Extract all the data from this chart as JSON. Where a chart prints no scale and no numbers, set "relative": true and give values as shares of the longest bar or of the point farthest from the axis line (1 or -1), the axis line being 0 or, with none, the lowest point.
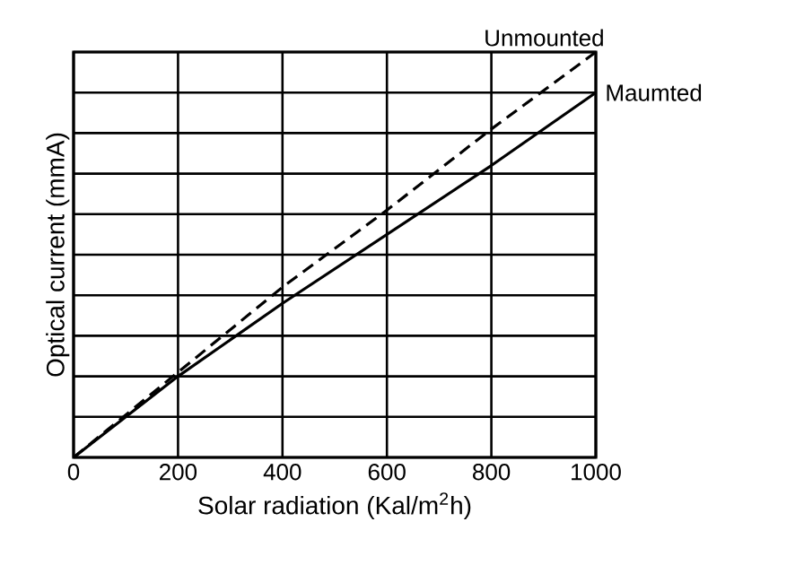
{
  "chart_data": {
    "type": "line",
    "relative": true,
    "xlabel": "Solar radiation (Kal/m$^{2}$h)",
    "ylabel": "Optical current (mmA)",
    "x": [
      0,
      200,
      400,
      600,
      800,
      1000
    ],
    "xlim": [
      0,
      1000
    ],
    "xticks": [
      0,
      200,
      400,
      600,
      800,
      1000
    ],
    "grid": true,
    "series": [
      {
        "name": "Unmounted",
        "color": "#000000",
        "line_style": "dashed",
        "values": [
          0,
          0.21,
          0.42,
          0.61,
          0.81,
          1
        ]
      },
      {
        "name": "Maumted",
        "color": "#000000",
        "line_style": "solid",
        "values": [
          0,
          0.2,
          0.38,
          0.55,
          0.72,
          0.9
        ]
      }
    ]
  }
}
